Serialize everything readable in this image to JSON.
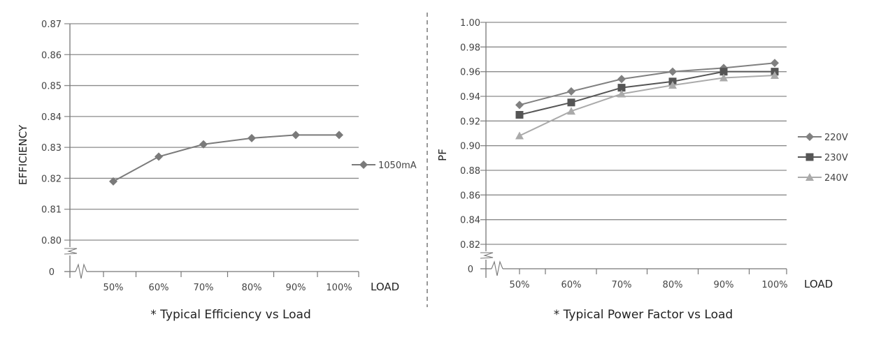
{
  "chart_data": [
    {
      "type": "line",
      "title": "* Typical Efficiency vs Load",
      "xlabel": "LOAD",
      "ylabel": "EFFICIENCY",
      "categories": [
        "50%",
        "60%",
        "70%",
        "80%",
        "90%",
        "100%"
      ],
      "yticks": [
        "0.80",
        "0.81",
        "0.82",
        "0.83",
        "0.84",
        "0.85",
        "0.86",
        "0.87"
      ],
      "ylim": [
        0.8,
        0.87
      ],
      "y_break_label": "0",
      "grid": true,
      "legend": "right",
      "series": [
        {
          "name": "1050mA",
          "marker": "diamond",
          "color": "#7a7a7a",
          "values": [
            0.819,
            0.827,
            0.831,
            0.833,
            0.834,
            0.834
          ]
        }
      ]
    },
    {
      "type": "line",
      "title": "* Typical Power Factor vs Load",
      "xlabel": "LOAD",
      "ylabel": "PF",
      "categories": [
        "50%",
        "60%",
        "70%",
        "80%",
        "90%",
        "100%"
      ],
      "yticks": [
        "0.82",
        "0.84",
        "0.86",
        "0.88",
        "0.90",
        "0.92",
        "0.94",
        "0.96",
        "0.98",
        "1.00"
      ],
      "ylim": [
        0.82,
        1.0
      ],
      "y_break_label": "0",
      "grid": true,
      "legend": "right",
      "series": [
        {
          "name": "220V",
          "marker": "diamond",
          "color": "#808080",
          "values": [
            0.933,
            0.944,
            0.954,
            0.96,
            0.963,
            0.967
          ]
        },
        {
          "name": "230V",
          "marker": "square",
          "color": "#555555",
          "values": [
            0.925,
            0.935,
            0.947,
            0.952,
            0.96,
            0.96
          ]
        },
        {
          "name": "240V",
          "marker": "triangle",
          "color": "#aaaaaa",
          "values": [
            0.908,
            0.928,
            0.942,
            0.949,
            0.955,
            0.957
          ]
        }
      ]
    }
  ]
}
